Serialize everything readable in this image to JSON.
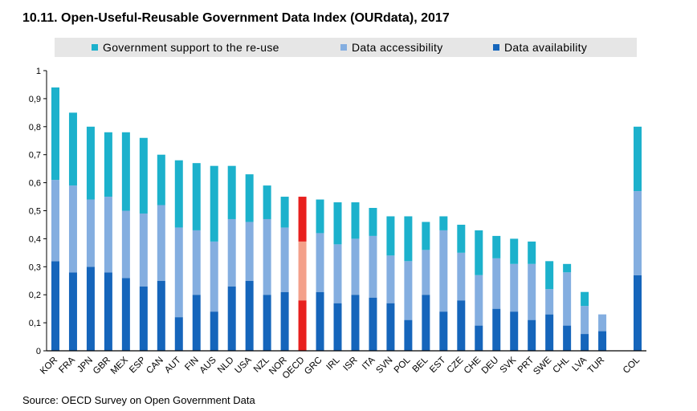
{
  "title": "10.11. Open-Useful-Reusable Government Data Index (OURdata), 2017",
  "source": "Source: OECD Survey on Open Government Data",
  "legend": [
    {
      "label": "Government support to the re-use",
      "color": "#1cb1cc"
    },
    {
      "label": "Data accessibility",
      "color": "#84aee0"
    },
    {
      "label": "Data availability",
      "color": "#1565bb"
    }
  ],
  "chart_data": {
    "type": "bar",
    "stacked": true,
    "ylim": [
      0,
      1
    ],
    "yticks": [
      "0",
      "0,1",
      "0,2",
      "0,3",
      "0,4",
      "0,5",
      "0,6",
      "0,7",
      "0,8",
      "0,9",
      "1"
    ],
    "grid": false,
    "legend_position": "top",
    "categories": [
      "KOR",
      "FRA",
      "JPN",
      "GBR",
      "MEX",
      "ESP",
      "CAN",
      "AUT",
      "FIN",
      "AUS",
      "NLD",
      "USA",
      "NZL",
      "NOR",
      "OECD",
      "GRC",
      "IRL",
      "ISR",
      "ITA",
      "SVN",
      "POL",
      "BEL",
      "EST",
      "CZE",
      "CHE",
      "DEU",
      "SVK",
      "PRT",
      "SWE",
      "CHL",
      "LVA",
      "TUR",
      "",
      "COL"
    ],
    "series": [
      {
        "name": "Data availability",
        "color": "#1565bb",
        "highlight_color": "#e8201e",
        "values": [
          0.32,
          0.28,
          0.3,
          0.28,
          0.26,
          0.23,
          0.25,
          0.12,
          0.2,
          0.14,
          0.23,
          0.25,
          0.2,
          0.21,
          0.18,
          0.21,
          0.17,
          0.2,
          0.19,
          0.17,
          0.11,
          0.2,
          0.14,
          0.18,
          0.09,
          0.15,
          0.14,
          0.11,
          0.13,
          0.09,
          0.06,
          0.07,
          null,
          0.27
        ]
      },
      {
        "name": "Data accessibility",
        "color": "#84aee0",
        "highlight_color": "#f4a08a",
        "values": [
          0.29,
          0.31,
          0.24,
          0.27,
          0.24,
          0.26,
          0.27,
          0.32,
          0.23,
          0.25,
          0.24,
          0.21,
          0.27,
          0.23,
          0.21,
          0.21,
          0.21,
          0.2,
          0.22,
          0.17,
          0.21,
          0.16,
          0.29,
          0.17,
          0.18,
          0.18,
          0.17,
          0.2,
          0.09,
          0.19,
          0.1,
          0.06,
          null,
          0.3
        ]
      },
      {
        "name": "Government support to the re-use",
        "color": "#1cb1cc",
        "highlight_color": "#e8201e",
        "values": [
          0.33,
          0.26,
          0.26,
          0.23,
          0.28,
          0.27,
          0.18,
          0.24,
          0.24,
          0.27,
          0.19,
          0.17,
          0.12,
          0.11,
          0.16,
          0.12,
          0.15,
          0.13,
          0.1,
          0.14,
          0.16,
          0.1,
          0.05,
          0.1,
          0.16,
          0.08,
          0.09,
          0.08,
          0.1,
          0.03,
          0.05,
          0.0,
          null,
          0.23
        ]
      }
    ],
    "highlight_category": "OECD"
  }
}
